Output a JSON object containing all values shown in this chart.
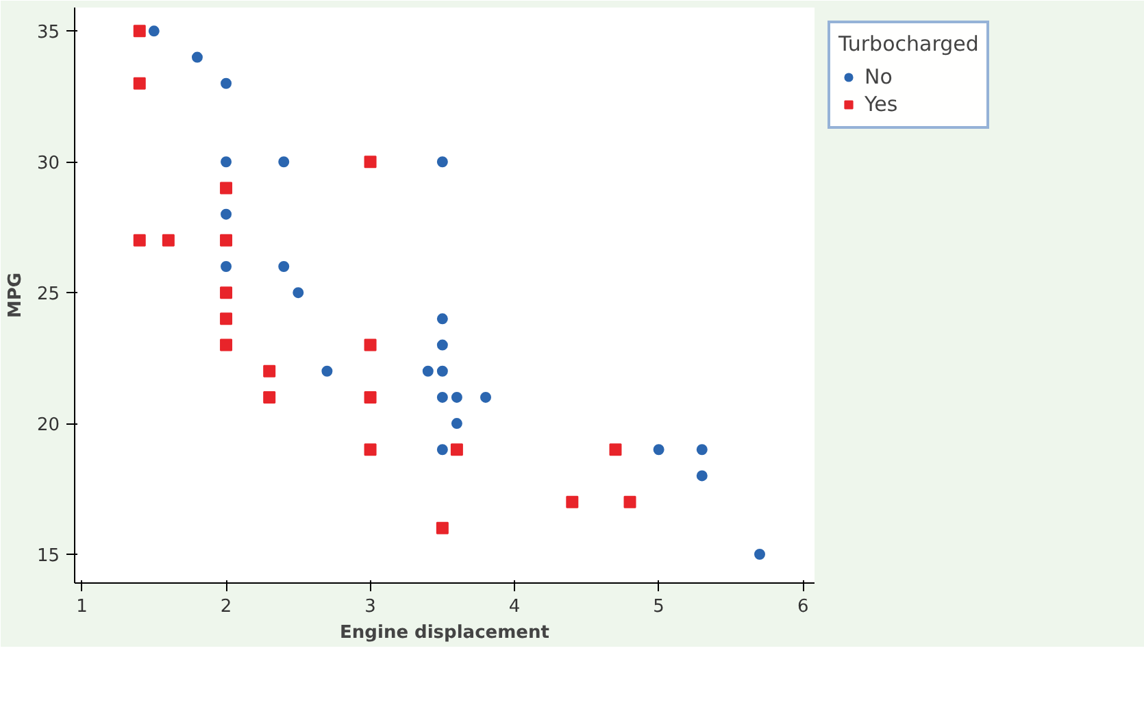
{
  "chart_data": {
    "type": "scatter",
    "xlabel": "Engine displacement",
    "ylabel": "MPG",
    "legend_title": "Turbocharged",
    "legend": "top right",
    "grid": false,
    "xlim": [
      0.95,
      6.08
    ],
    "xticks": [
      1,
      2,
      3,
      4,
      5,
      6
    ],
    "ylim": [
      13.9,
      35.9
    ],
    "yticks": [
      15,
      20,
      25,
      30,
      35
    ],
    "series": [
      {
        "name": "No",
        "color": "#2b66b0",
        "marker": "circle",
        "x": [
          1.5,
          1.8,
          2.0,
          2.0,
          2.4,
          3.5,
          2.0,
          2.0,
          2.4,
          2.5,
          2.7,
          3.5,
          3.5,
          3.4,
          3.5,
          3.5,
          3.6,
          3.8,
          3.6,
          3.5,
          5.0,
          5.3,
          5.3,
          5.7
        ],
        "values": [
          35,
          34,
          33,
          30,
          30,
          30,
          28,
          26,
          26,
          25,
          22,
          24,
          23,
          22,
          22,
          21,
          21,
          21,
          20,
          19,
          19,
          19,
          18,
          15
        ]
      },
      {
        "name": "Yes",
        "color": "#e8242a",
        "marker": "square",
        "x": [
          1.4,
          1.4,
          1.4,
          1.6,
          2.0,
          2.0,
          2.0,
          2.0,
          2.0,
          2.3,
          2.3,
          3.0,
          3.0,
          3.0,
          3.0,
          3.6,
          3.5,
          4.7,
          4.4,
          4.8
        ],
        "values": [
          35,
          33,
          27,
          27,
          29,
          27,
          25,
          24,
          23,
          22,
          21,
          30,
          23,
          21,
          19,
          19,
          16,
          19,
          17,
          17
        ]
      }
    ]
  }
}
